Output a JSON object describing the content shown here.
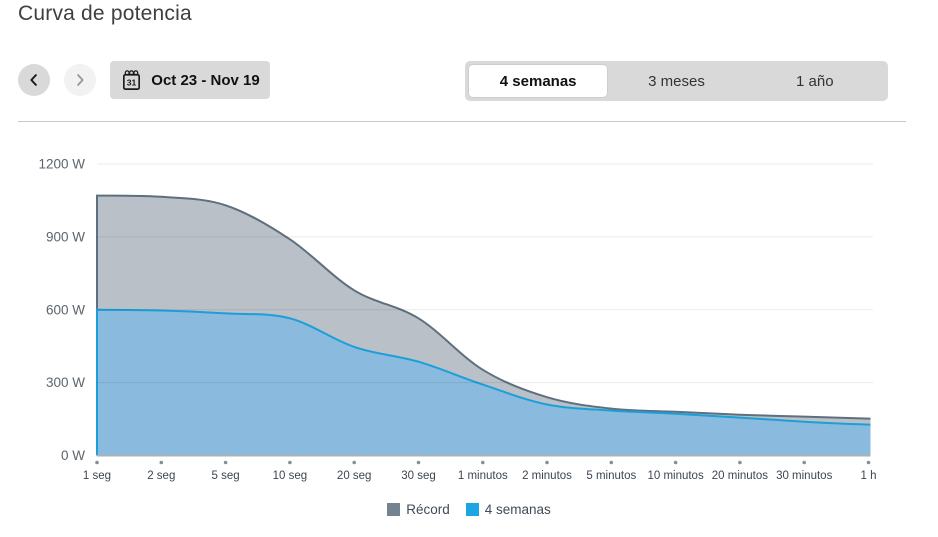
{
  "page": {
    "title": "Curva de potencia"
  },
  "toolbar": {
    "prev_icon": "chevron-left",
    "next_icon": "chevron-right",
    "calendar_icon": "calendar",
    "calendar_day": "31",
    "date_range": "Oct 23 - Nov 19"
  },
  "tabs": [
    {
      "label": "4 semanas",
      "active": true
    },
    {
      "label": "3 meses",
      "active": false
    },
    {
      "label": "1 año",
      "active": false
    }
  ],
  "chart_data": {
    "type": "area",
    "title": "Curva de potencia",
    "xlabel": "",
    "ylabel": "W",
    "categories": [
      "1 seg",
      "2 seg",
      "5 seg",
      "10 seg",
      "20 seg",
      "30 seg",
      "1 minutos",
      "2 minutos",
      "5 minutos",
      "10 minutos",
      "20 minutos",
      "30 minutos",
      "1 h"
    ],
    "y_ticks": [
      0,
      300,
      600,
      900,
      1200
    ],
    "y_tick_labels": [
      "0 W",
      "300 W",
      "600 W",
      "900 W",
      "1200 W"
    ],
    "ylim": [
      0,
      1200
    ],
    "grid": true,
    "legend_position": "bottom",
    "series": [
      {
        "name": "Récord",
        "values": [
          1070,
          1065,
          1030,
          890,
          680,
          565,
          353,
          240,
          193,
          180,
          168,
          160,
          152
        ],
        "line_color": "#5e6f7e",
        "fill_color": "#b9c0c7",
        "legend_color": "#75838e"
      },
      {
        "name": "4 semanas",
        "values": [
          600,
          597,
          585,
          565,
          447,
          386,
          292,
          210,
          185,
          172,
          156,
          139,
          127
        ],
        "line_color": "#1b9fd9",
        "fill_color": "#8abade",
        "legend_color": "#1ba6e2"
      }
    ]
  },
  "ui_colors": {
    "control_bg": "#d9d9d9",
    "active_tab_bg": "#ffffff",
    "accent_blue": "#1ba6e2"
  }
}
